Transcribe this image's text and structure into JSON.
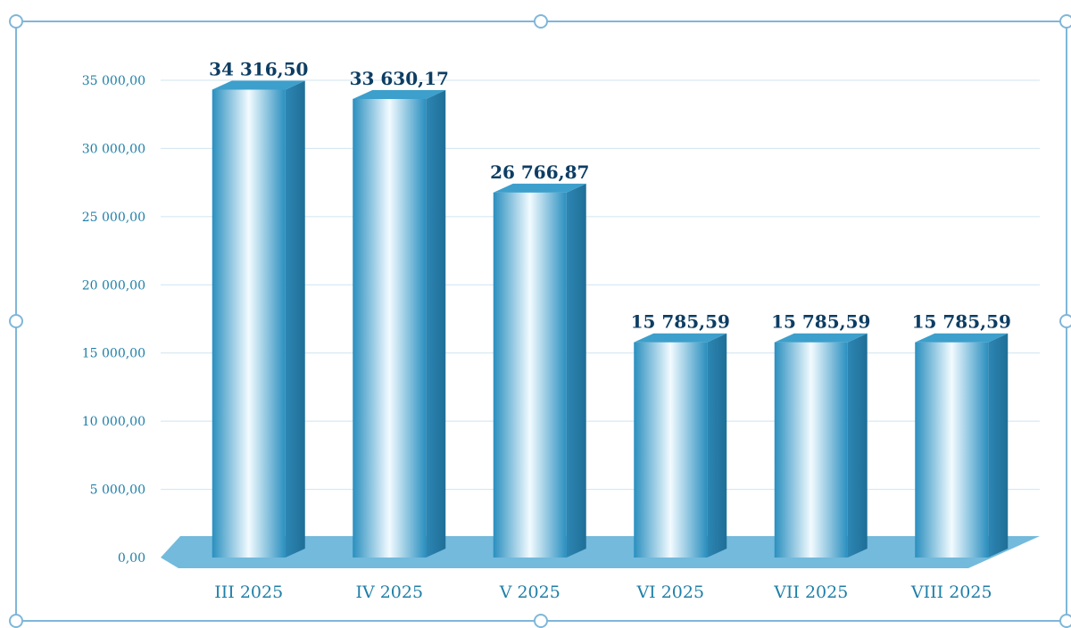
{
  "chart_data": {
    "type": "bar",
    "title": "",
    "xlabel": "",
    "ylabel": "",
    "categories": [
      "III 2025",
      "IV 2025",
      "V 2025",
      "VI 2025",
      "VII 2025",
      "VIII 2025"
    ],
    "values": [
      34316.5,
      33630.17,
      26766.87,
      15785.59,
      15785.59,
      15785.59
    ],
    "data_labels": [
      "34 316,50",
      "33 630,17",
      "26 766,87",
      "15 785,59",
      "15 785,59",
      "15 785,59"
    ],
    "yticks": [
      {
        "value": 0,
        "label": "0,00"
      },
      {
        "value": 5000,
        "label": "5 000,00"
      },
      {
        "value": 10000,
        "label": "10 000,00"
      },
      {
        "value": 15000,
        "label": "15 000,00"
      },
      {
        "value": 20000,
        "label": "20 000,00"
      },
      {
        "value": 25000,
        "label": "25 000,00"
      },
      {
        "value": 30000,
        "label": "30 000,00"
      },
      {
        "value": 35000,
        "label": "35 000,00"
      }
    ],
    "ylim": [
      0,
      35000
    ],
    "grid": true,
    "style": "3d-column",
    "legend": "none"
  },
  "colors": {
    "bar_front": "#2a8fbf",
    "bar_highlight": "#f2fbff",
    "bar_side": "#1f6f97",
    "bar_top": "#3d9fcb",
    "floor": "#5aaed6",
    "grid": "#cfe4f1",
    "tick_text": "#1f7fa8",
    "label_text": "#0d3d63",
    "frame": "#7fb7d9"
  }
}
